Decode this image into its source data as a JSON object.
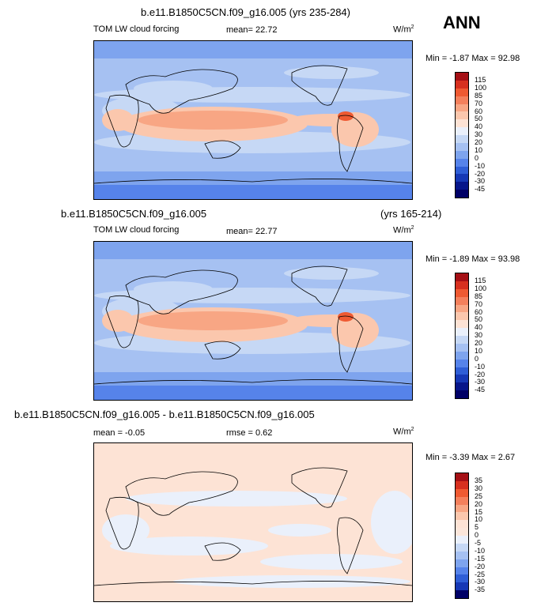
{
  "panel1": {
    "title": "b.e11.B1850C5CN.f09_g16.005 (yrs 235-284)",
    "varname": "TOM LW cloud forcing",
    "mean": "mean=  22.72",
    "units": "W/m",
    "units_sup": "2",
    "minmax": "Min = -1.87 Max = 92.98"
  },
  "season": "ANN",
  "panel2": {
    "title": "b.e11.B1850C5CN.f09_g16.005",
    "years": "(yrs 165-214)",
    "varname": "TOM LW cloud forcing",
    "mean": "mean=  22.77",
    "units": "W/m",
    "units_sup": "2",
    "minmax": "Min = -1.89 Max = 93.98"
  },
  "panel3": {
    "title": "b.e11.B1850C5CN.f09_g16.005 - b.e11.B1850C5CN.f09_g16.005",
    "mean": "mean =  -0.05",
    "rmse": "rmse =   0.62",
    "units": "W/m",
    "units_sup": "2",
    "minmax": "Min = -3.39 Max =   2.67"
  },
  "colorbar_main": {
    "labels": [
      "115",
      "100",
      "85",
      "70",
      "60",
      "50",
      "40",
      "30",
      "20",
      "10",
      "0",
      "-10",
      "-20",
      "-30",
      "-45"
    ],
    "colors": [
      "#a50f15",
      "#d7301f",
      "#ef5a32",
      "#f4805c",
      "#f8a684",
      "#fbc7ad",
      "#fde3d5",
      "#eaf0fb",
      "#c6d8f5",
      "#a6c1f2",
      "#7ea4ee",
      "#5683ea",
      "#2f5ed6",
      "#1638b5",
      "#07168a",
      "#000066"
    ]
  },
  "colorbar_diff": {
    "labels": [
      "35",
      "30",
      "25",
      "20",
      "15",
      "10",
      "5",
      "0",
      "-5",
      "-10",
      "-15",
      "-20",
      "-25",
      "-30",
      "-35"
    ],
    "colors": [
      "#a50f15",
      "#d7301f",
      "#ef5a32",
      "#f4805c",
      "#f8a684",
      "#fbc7ad",
      "#fde3d5",
      "#fbe6da",
      "#eaf0fb",
      "#c6d8f5",
      "#a6c1f2",
      "#7ea4ee",
      "#5683ea",
      "#2f5ed6",
      "#1638b5",
      "#000066"
    ]
  }
}
